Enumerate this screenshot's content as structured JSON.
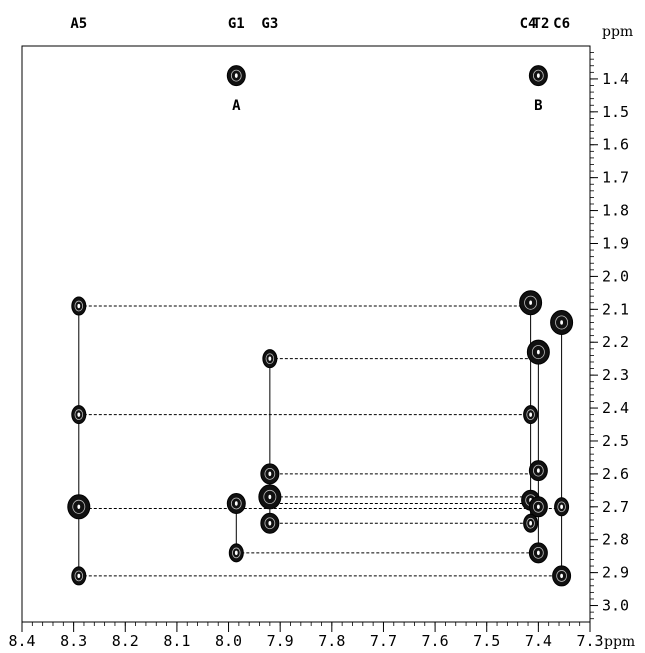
{
  "chart_data": {
    "type": "scatter",
    "title": "",
    "xlabel": "ppm",
    "ylabel": "ppm",
    "x_axis": {
      "range": [
        8.4,
        7.3
      ],
      "reversed": true,
      "ticks": [
        8.4,
        8.3,
        8.2,
        8.1,
        8.0,
        7.9,
        7.8,
        7.7,
        7.6,
        7.5,
        7.4,
        7.3
      ],
      "tick_labels": [
        "8.4",
        "8.3",
        "8.2",
        "8.1",
        "8.0",
        "7.9",
        "7.8",
        "7.7",
        "7.6",
        "7.5",
        "7.4",
        "7.3"
      ]
    },
    "y_axis": {
      "range": [
        1.3,
        3.05
      ],
      "reversed": true,
      "position": "right",
      "ticks": [
        1.4,
        1.5,
        1.6,
        1.7,
        1.8,
        1.9,
        2.0,
        2.1,
        2.2,
        2.3,
        2.4,
        2.5,
        2.6,
        2.7,
        2.8,
        2.9,
        3.0
      ],
      "tick_labels": [
        "1.4",
        "1.5",
        "1.6",
        "1.7",
        "1.8",
        "1.9",
        "2.0",
        "2.1",
        "2.2",
        "2.3",
        "2.4",
        "2.5",
        "2.6",
        "2.7",
        "2.8",
        "2.9",
        "3.0"
      ]
    },
    "grid": false,
    "column_labels": [
      {
        "text": "A5",
        "x": 8.29
      },
      {
        "text": "G1",
        "x": 7.985
      },
      {
        "text": "G3",
        "x": 7.92
      },
      {
        "text": "C4",
        "x": 7.42
      },
      {
        "text": "T2",
        "x": 7.395
      },
      {
        "text": "C6",
        "x": 7.355
      }
    ],
    "annotations": [
      {
        "text": "A",
        "x": 7.985,
        "y": 1.48
      },
      {
        "text": "B",
        "x": 7.4,
        "y": 1.48
      }
    ],
    "points": [
      {
        "x": 7.985,
        "y": 1.39,
        "size": "m"
      },
      {
        "x": 7.4,
        "y": 1.39,
        "size": "m"
      },
      {
        "x": 8.29,
        "y": 2.09,
        "size": "s"
      },
      {
        "x": 8.29,
        "y": 2.42,
        "size": "s"
      },
      {
        "x": 8.29,
        "y": 2.7,
        "size": "l"
      },
      {
        "x": 8.29,
        "y": 2.91,
        "size": "s"
      },
      {
        "x": 7.985,
        "y": 2.69,
        "size": "m"
      },
      {
        "x": 7.985,
        "y": 2.84,
        "size": "s"
      },
      {
        "x": 7.92,
        "y": 2.25,
        "size": "s"
      },
      {
        "x": 7.92,
        "y": 2.6,
        "size": "m"
      },
      {
        "x": 7.92,
        "y": 2.67,
        "size": "l"
      },
      {
        "x": 7.92,
        "y": 2.75,
        "size": "m"
      },
      {
        "x": 7.415,
        "y": 2.08,
        "size": "l"
      },
      {
        "x": 7.415,
        "y": 2.42,
        "size": "s"
      },
      {
        "x": 7.415,
        "y": 2.68,
        "size": "m"
      },
      {
        "x": 7.415,
        "y": 2.75,
        "size": "s"
      },
      {
        "x": 7.4,
        "y": 2.23,
        "size": "l"
      },
      {
        "x": 7.4,
        "y": 2.59,
        "size": "m"
      },
      {
        "x": 7.4,
        "y": 2.7,
        "size": "m"
      },
      {
        "x": 7.4,
        "y": 2.84,
        "size": "m"
      },
      {
        "x": 7.355,
        "y": 2.14,
        "size": "l"
      },
      {
        "x": 7.355,
        "y": 2.7,
        "size": "s"
      },
      {
        "x": 7.355,
        "y": 2.91,
        "size": "m"
      }
    ],
    "vertical_lines": [
      {
        "x": 8.29,
        "y1": 2.09,
        "y2": 2.91
      },
      {
        "x": 7.985,
        "y1": 2.69,
        "y2": 2.84
      },
      {
        "x": 7.92,
        "y1": 2.25,
        "y2": 2.75
      },
      {
        "x": 7.415,
        "y1": 2.08,
        "y2": 2.75
      },
      {
        "x": 7.4,
        "y1": 2.23,
        "y2": 2.84
      },
      {
        "x": 7.355,
        "y1": 2.14,
        "y2": 2.91
      }
    ],
    "dashed_lines": [
      {
        "x1": 8.29,
        "x2": 7.415,
        "y": 2.09
      },
      {
        "x1": 7.92,
        "x2": 7.4,
        "y": 2.25
      },
      {
        "x1": 8.29,
        "x2": 7.415,
        "y": 2.42
      },
      {
        "x1": 7.92,
        "x2": 7.4,
        "y": 2.6
      },
      {
        "x1": 7.92,
        "x2": 7.415,
        "y": 2.67
      },
      {
        "x1": 7.92,
        "x2": 7.4,
        "y": 2.69
      },
      {
        "x1": 8.29,
        "x2": 7.355,
        "y": 2.705
      },
      {
        "x1": 7.92,
        "x2": 7.415,
        "y": 2.75
      },
      {
        "x1": 7.985,
        "x2": 7.4,
        "y": 2.84
      },
      {
        "x1": 8.29,
        "x2": 7.355,
        "y": 2.91
      }
    ]
  }
}
